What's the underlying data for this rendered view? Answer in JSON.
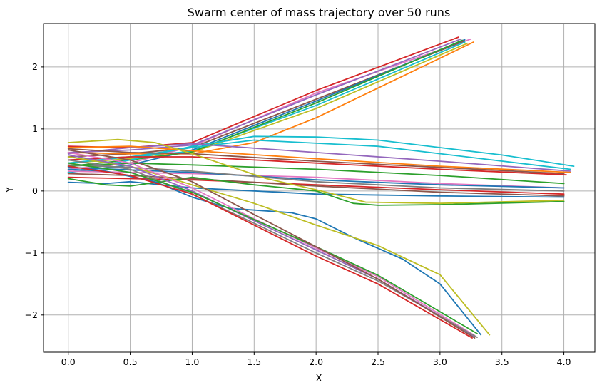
{
  "chart_data": {
    "type": "line",
    "title": "Swarm center of mass trajectory over 50 runs",
    "xlabel": "X",
    "ylabel": "Y",
    "xlim": [
      -0.2,
      4.25
    ],
    "ylim": [
      -2.6,
      2.7
    ],
    "xticks": [
      0.0,
      0.5,
      1.0,
      1.5,
      2.0,
      2.5,
      3.0,
      3.5,
      4.0
    ],
    "xtick_labels": [
      "0.0",
      "0.5",
      "1.0",
      "1.5",
      "2.0",
      "2.5",
      "3.0",
      "3.5",
      "4.0"
    ],
    "yticks": [
      -2,
      -1,
      0,
      1,
      2
    ],
    "ytick_labels": [
      "−2",
      "−1",
      "0",
      "1",
      "2"
    ],
    "grid": true,
    "legend": false,
    "series": [
      {
        "color": "#d62728",
        "points": [
          [
            0,
            0.72
          ],
          [
            0.5,
            0.7
          ],
          [
            1.0,
            0.78
          ],
          [
            2.0,
            1.62
          ],
          [
            3.15,
            2.48
          ]
        ]
      },
      {
        "color": "#e377c2",
        "points": [
          [
            0,
            0.35
          ],
          [
            0.5,
            0.45
          ],
          [
            1.0,
            0.72
          ],
          [
            2.0,
            1.58
          ],
          [
            3.25,
            2.45
          ]
        ]
      },
      {
        "color": "#8c564b",
        "points": [
          [
            0,
            0.55
          ],
          [
            0.5,
            0.6
          ],
          [
            1.0,
            0.7
          ],
          [
            2.0,
            1.48
          ],
          [
            3.2,
            2.42
          ]
        ]
      },
      {
        "color": "#1f77b4",
        "points": [
          [
            0,
            0.3
          ],
          [
            0.5,
            0.42
          ],
          [
            1.0,
            0.66
          ],
          [
            2.0,
            1.45
          ],
          [
            3.2,
            2.44
          ]
        ]
      },
      {
        "color": "#17becf",
        "points": [
          [
            0,
            0.5
          ],
          [
            0.5,
            0.55
          ],
          [
            1.0,
            0.64
          ],
          [
            2.0,
            1.38
          ],
          [
            3.2,
            2.4
          ]
        ]
      },
      {
        "color": "#bcbd22",
        "points": [
          [
            0,
            0.45
          ],
          [
            0.5,
            0.52
          ],
          [
            1.0,
            0.62
          ],
          [
            2.0,
            1.33
          ],
          [
            3.22,
            2.38
          ]
        ]
      },
      {
        "color": "#ff7f0e",
        "points": [
          [
            0,
            0.62
          ],
          [
            0.5,
            0.6
          ],
          [
            1.0,
            0.6
          ],
          [
            1.5,
            0.78
          ],
          [
            2.0,
            1.18
          ],
          [
            3.27,
            2.4
          ]
        ]
      },
      {
        "color": "#2ca02c",
        "points": [
          [
            0,
            0.4
          ],
          [
            0.5,
            0.5
          ],
          [
            1.0,
            0.63
          ],
          [
            2.0,
            1.42
          ],
          [
            3.18,
            2.43
          ]
        ]
      },
      {
        "color": "#9467bd",
        "points": [
          [
            0,
            0.62
          ],
          [
            0.5,
            0.66
          ],
          [
            1.0,
            0.74
          ],
          [
            2.0,
            1.55
          ],
          [
            3.17,
            2.45
          ]
        ]
      },
      {
        "color": "#17becf",
        "points": [
          [
            0,
            0.3
          ],
          [
            0.5,
            0.5
          ],
          [
            1.0,
            0.72
          ],
          [
            1.5,
            0.88
          ],
          [
            2.0,
            0.87
          ],
          [
            2.5,
            0.82
          ],
          [
            3.0,
            0.7
          ],
          [
            3.5,
            0.58
          ],
          [
            4.08,
            0.4
          ]
        ]
      },
      {
        "color": "#17becf",
        "points": [
          [
            0,
            0.45
          ],
          [
            0.5,
            0.55
          ],
          [
            1.0,
            0.7
          ],
          [
            1.5,
            0.82
          ],
          [
            2.5,
            0.72
          ],
          [
            4.05,
            0.35
          ]
        ]
      },
      {
        "color": "#9467bd",
        "points": [
          [
            0,
            0.6
          ],
          [
            0.5,
            0.7
          ],
          [
            1.0,
            0.76
          ],
          [
            2.0,
            0.62
          ],
          [
            3.0,
            0.48
          ],
          [
            4.05,
            0.32
          ]
        ]
      },
      {
        "color": "#ff7f0e",
        "points": [
          [
            0,
            0.7
          ],
          [
            0.5,
            0.72
          ],
          [
            1.0,
            0.65
          ],
          [
            2.0,
            0.52
          ],
          [
            3.0,
            0.4
          ],
          [
            4.05,
            0.3
          ]
        ]
      },
      {
        "color": "#8c564b",
        "points": [
          [
            0,
            0.68
          ],
          [
            0.5,
            0.62
          ],
          [
            1.0,
            0.6
          ],
          [
            2.0,
            0.48
          ],
          [
            3.0,
            0.38
          ],
          [
            4.0,
            0.28
          ]
        ]
      },
      {
        "color": "#d62728",
        "points": [
          [
            0,
            0.5
          ],
          [
            0.5,
            0.55
          ],
          [
            1.0,
            0.55
          ],
          [
            2.0,
            0.45
          ],
          [
            3.0,
            0.35
          ],
          [
            4.02,
            0.26
          ]
        ]
      },
      {
        "color": "#2ca02c",
        "points": [
          [
            0,
            0.4
          ],
          [
            0.5,
            0.45
          ],
          [
            1.0,
            0.42
          ],
          [
            2.0,
            0.35
          ],
          [
            3.0,
            0.25
          ],
          [
            4.0,
            0.12
          ]
        ]
      },
      {
        "color": "#e377c2",
        "points": [
          [
            0,
            0.32
          ],
          [
            0.5,
            0.3
          ],
          [
            1.0,
            0.28
          ],
          [
            2.0,
            0.22
          ],
          [
            3.0,
            0.12
          ],
          [
            4.0,
            0.05
          ]
        ]
      },
      {
        "color": "#1f77b4",
        "points": [
          [
            0,
            0.38
          ],
          [
            0.5,
            0.34
          ],
          [
            1.0,
            0.3
          ],
          [
            2.0,
            0.18
          ],
          [
            3.0,
            0.1
          ],
          [
            4.0,
            0.05
          ]
        ]
      },
      {
        "color": "#7f7f7f",
        "points": [
          [
            0,
            0.42
          ],
          [
            0.5,
            0.38
          ],
          [
            1.0,
            0.32
          ],
          [
            2.0,
            0.15
          ],
          [
            3.0,
            0.05
          ],
          [
            4.0,
            0.0
          ]
        ]
      },
      {
        "color": "#d62728",
        "points": [
          [
            0,
            0.22
          ],
          [
            0.5,
            0.2
          ],
          [
            1.0,
            0.18
          ],
          [
            2.0,
            0.1
          ],
          [
            3.0,
            0.02
          ],
          [
            4.0,
            -0.05
          ]
        ]
      },
      {
        "color": "#8c564b",
        "points": [
          [
            0,
            0.28
          ],
          [
            0.5,
            0.25
          ],
          [
            1.0,
            0.2
          ],
          [
            2.0,
            0.08
          ],
          [
            3.0,
            -0.02
          ],
          [
            4.0,
            -0.08
          ]
        ]
      },
      {
        "color": "#1f77b4",
        "points": [
          [
            0,
            0.14
          ],
          [
            0.3,
            0.12
          ],
          [
            0.5,
            0.15
          ],
          [
            1.0,
            0.05
          ],
          [
            1.5,
            0.0
          ],
          [
            2.0,
            -0.05
          ],
          [
            3.0,
            -0.08
          ],
          [
            4.0,
            -0.1
          ]
        ]
      },
      {
        "color": "#2ca02c",
        "points": [
          [
            0,
            0.2
          ],
          [
            0.3,
            0.1
          ],
          [
            0.5,
            0.08
          ],
          [
            1.0,
            0.22
          ],
          [
            1.5,
            0.1
          ],
          [
            2.0,
            0.0
          ],
          [
            2.3,
            -0.2
          ],
          [
            2.5,
            -0.23
          ],
          [
            3.0,
            -0.22
          ],
          [
            4.0,
            -0.17
          ]
        ]
      },
      {
        "color": "#bcbd22",
        "points": [
          [
            0,
            0.78
          ],
          [
            0.4,
            0.83
          ],
          [
            0.7,
            0.78
          ],
          [
            1.0,
            0.6
          ],
          [
            1.3,
            0.4
          ],
          [
            1.6,
            0.2
          ],
          [
            2.0,
            0.02
          ],
          [
            2.4,
            -0.18
          ],
          [
            3.0,
            -0.2
          ],
          [
            4.0,
            -0.15
          ]
        ]
      },
      {
        "color": "#1f77b4",
        "points": [
          [
            0,
            0.35
          ],
          [
            0.3,
            0.32
          ],
          [
            0.7,
            0.15
          ],
          [
            1.0,
            -0.1
          ],
          [
            1.3,
            -0.28
          ],
          [
            1.8,
            -0.35
          ],
          [
            2.0,
            -0.45
          ],
          [
            2.3,
            -0.75
          ],
          [
            2.7,
            -1.1
          ],
          [
            3.0,
            -1.5
          ],
          [
            3.33,
            -2.32
          ]
        ]
      },
      {
        "color": "#bcbd22",
        "points": [
          [
            0,
            0.55
          ],
          [
            0.5,
            0.4
          ],
          [
            1.0,
            0.1
          ],
          [
            1.5,
            -0.2
          ],
          [
            2.0,
            -0.55
          ],
          [
            2.5,
            -0.88
          ],
          [
            3.0,
            -1.35
          ],
          [
            3.4,
            -2.32
          ]
        ]
      },
      {
        "color": "#e377c2",
        "points": [
          [
            0,
            0.62
          ],
          [
            0.5,
            0.45
          ],
          [
            1.0,
            0.05
          ],
          [
            1.5,
            -0.45
          ],
          [
            2.0,
            -0.92
          ],
          [
            2.5,
            -1.38
          ],
          [
            3.28,
            -2.33
          ]
        ]
      },
      {
        "color": "#9467bd",
        "points": [
          [
            0,
            0.58
          ],
          [
            0.5,
            0.4
          ],
          [
            1.0,
            0.0
          ],
          [
            1.5,
            -0.48
          ],
          [
            2.0,
            -0.95
          ],
          [
            2.5,
            -1.42
          ],
          [
            3.28,
            -2.35
          ]
        ]
      },
      {
        "color": "#7f7f7f",
        "points": [
          [
            0,
            0.5
          ],
          [
            0.5,
            0.35
          ],
          [
            1.0,
            -0.05
          ],
          [
            1.5,
            -0.52
          ],
          [
            2.0,
            -1.0
          ],
          [
            2.5,
            -1.45
          ],
          [
            3.3,
            -2.36
          ]
        ]
      },
      {
        "color": "#2ca02c",
        "points": [
          [
            0,
            0.45
          ],
          [
            0.5,
            0.3
          ],
          [
            1.0,
            -0.02
          ],
          [
            1.5,
            -0.46
          ],
          [
            2.0,
            -0.9
          ],
          [
            2.5,
            -1.36
          ],
          [
            3.3,
            -2.3
          ]
        ]
      },
      {
        "color": "#8c564b",
        "points": [
          [
            0,
            0.66
          ],
          [
            0.5,
            0.5
          ],
          [
            1.0,
            0.15
          ],
          [
            1.5,
            -0.38
          ],
          [
            2.0,
            -0.9
          ],
          [
            2.5,
            -1.42
          ],
          [
            3.28,
            -2.37
          ]
        ]
      },
      {
        "color": "#d62728",
        "points": [
          [
            0,
            0.4
          ],
          [
            0.5,
            0.25
          ],
          [
            1.0,
            -0.05
          ],
          [
            1.5,
            -0.55
          ],
          [
            2.0,
            -1.05
          ],
          [
            2.5,
            -1.5
          ],
          [
            3.26,
            -2.37
          ]
        ]
      }
    ]
  }
}
